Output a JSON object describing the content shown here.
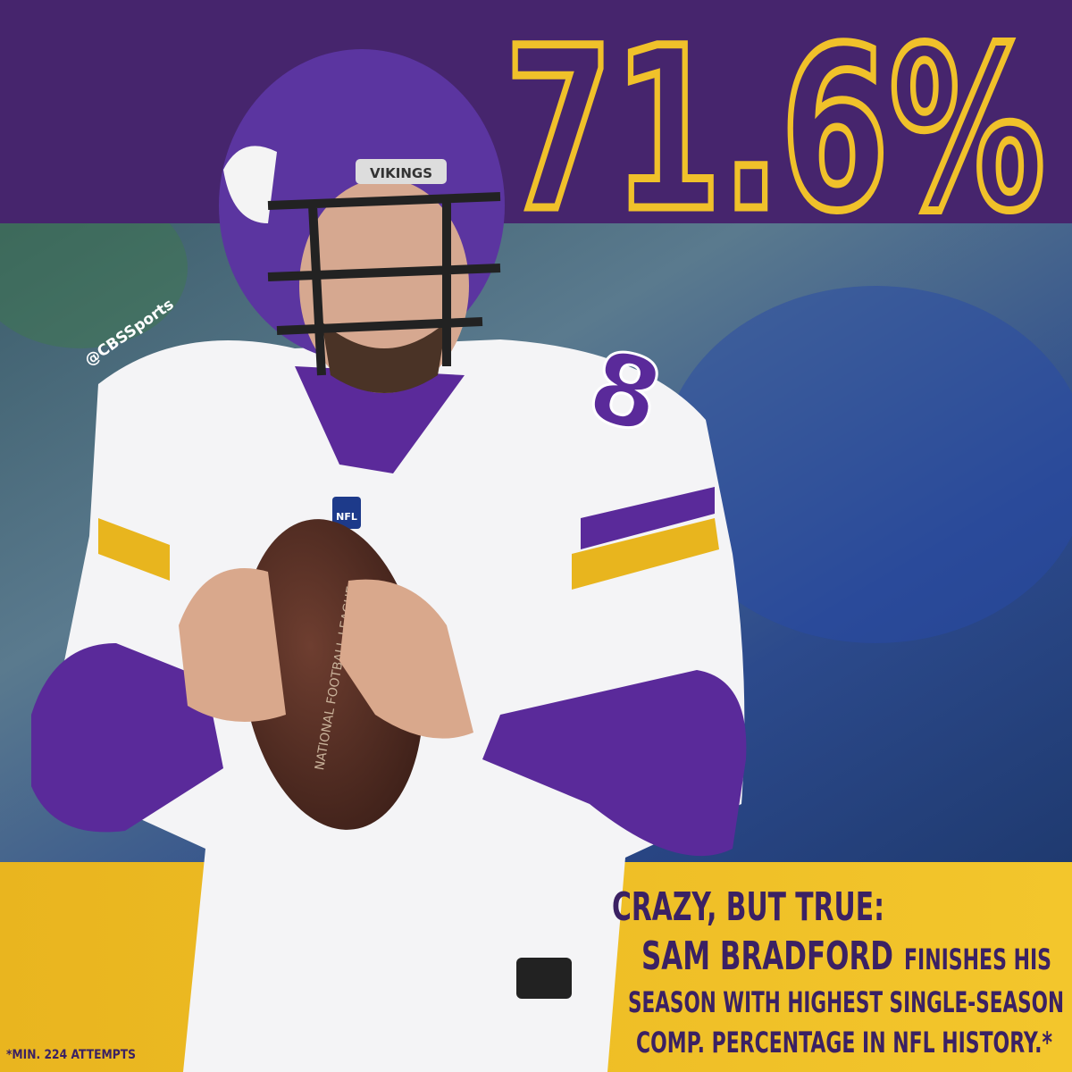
{
  "headline": {
    "stat": "71.6%"
  },
  "watermark": "@CBSSports",
  "photo": {
    "helmet_logo": "VIKINGS",
    "jersey_number": "8",
    "shield": "NFL",
    "ball_text": "NATIONAL FOOTBALL LEAGUE"
  },
  "caption": {
    "lead": "CRAZY, BUT TRUE:",
    "name": "SAM BRADFORD",
    "line1_rest": "FINISHES HIS",
    "line2": "SEASON WITH HIGHEST SINGLE-SEASON",
    "line3": "COMP. PERCENTAGE IN NFL HISTORY.*"
  },
  "footnote": "*MIN. 224 ATTEMPTS"
}
